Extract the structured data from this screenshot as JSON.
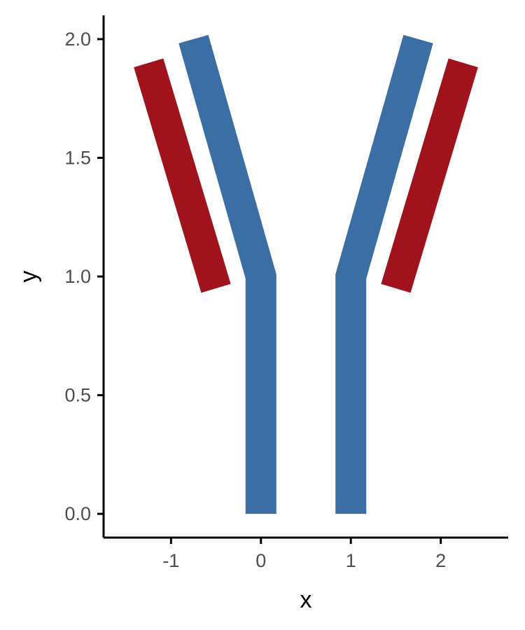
{
  "chart_data": {
    "type": "line",
    "title": "",
    "xlabel": "x",
    "ylabel": "y",
    "xlim": [
      -1.75,
      2.75
    ],
    "ylim": [
      -0.1,
      2.1
    ],
    "x_ticks": [
      -1,
      0,
      1,
      2
    ],
    "x_tick_labels": [
      "-1",
      "0",
      "1",
      "2"
    ],
    "y_ticks": [
      0.0,
      0.5,
      1.0,
      1.5,
      2.0
    ],
    "y_tick_labels": [
      "0.0",
      "0.5",
      "1.0",
      "1.5",
      "2.0"
    ],
    "grid": false,
    "legend": "none",
    "series": [
      {
        "color": "#3A6EA5",
        "points": [
          [
            0,
            0
          ],
          [
            0,
            1
          ],
          [
            -0.75,
            2
          ]
        ]
      },
      {
        "color": "#3A6EA5",
        "points": [
          [
            1,
            0
          ],
          [
            1,
            1
          ],
          [
            1.75,
            2
          ]
        ]
      },
      {
        "color": "#A0131C",
        "points": [
          [
            -0.5,
            0.95
          ],
          [
            -1.25,
            1.9
          ]
        ]
      },
      {
        "color": "#A0131C",
        "points": [
          [
            1.5,
            0.95
          ],
          [
            2.25,
            1.9
          ]
        ]
      }
    ]
  }
}
